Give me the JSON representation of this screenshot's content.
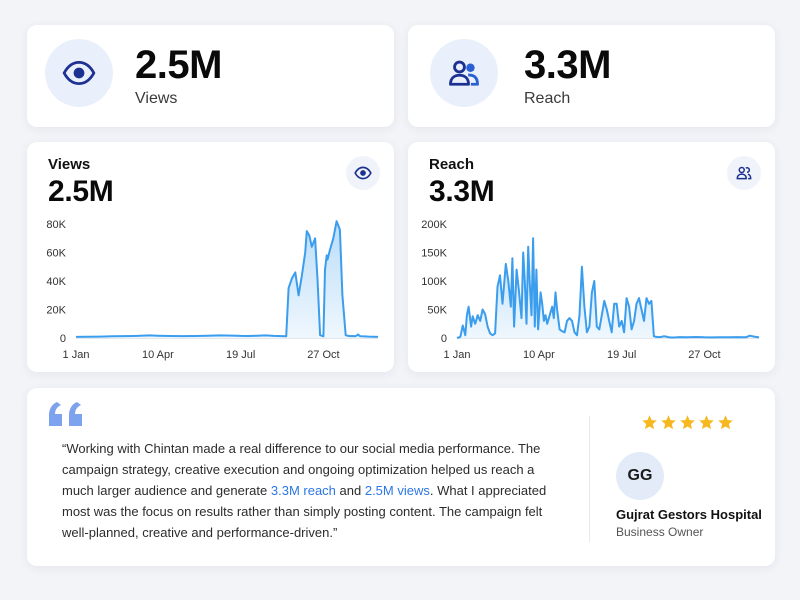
{
  "stats": [
    {
      "value": "2.5M",
      "label": "Views",
      "icon": "eye-icon"
    },
    {
      "value": "3.3M",
      "label": "Reach",
      "icon": "users-icon"
    }
  ],
  "charts": [
    {
      "title": "Views",
      "value": "2.5M",
      "icon": "eye-icon"
    },
    {
      "title": "Reach",
      "value": "3.3M",
      "icon": "users-icon"
    }
  ],
  "chart_data": [
    {
      "type": "area",
      "title": "Views",
      "ylim": [
        0,
        80000
      ],
      "y_ticks": [
        {
          "value": 80000,
          "label": "80K"
        },
        {
          "value": 60000,
          "label": "60K"
        },
        {
          "value": 40000,
          "label": "40K"
        },
        {
          "value": 20000,
          "label": "20K"
        },
        {
          "value": 0,
          "label": "0"
        }
      ],
      "x_ticks": [
        "1 Jan",
        "10 Apr",
        "19 Jul",
        "27 Oct"
      ],
      "x_domain": [
        1,
        366
      ],
      "x_tick_days": [
        1,
        100,
        200,
        300
      ],
      "grid": false,
      "color": "#3b9ded",
      "series": [
        {
          "x": [
            1,
            15,
            30,
            45,
            60,
            75,
            90,
            100,
            115,
            130,
            145,
            160,
            175,
            190,
            200,
            210,
            220,
            230,
            240,
            255,
            258,
            262,
            266,
            270,
            274,
            278,
            280,
            283,
            286,
            290,
            293,
            296,
            300,
            302,
            304,
            305,
            308,
            312,
            316,
            320,
            323,
            327,
            330,
            333,
            336,
            338,
            340,
            342,
            344,
            346,
            350,
            355,
            360,
            366
          ],
          "y": [
            800,
            900,
            1000,
            1200,
            1300,
            1500,
            1800,
            1600,
            1400,
            1300,
            1400,
            1600,
            1800,
            1700,
            1500,
            1400,
            1600,
            1800,
            1500,
            1200,
            35000,
            42000,
            46000,
            30000,
            44000,
            60000,
            75000,
            72000,
            64000,
            70000,
            40000,
            2000,
            1200,
            48000,
            58000,
            55000,
            62000,
            70000,
            82000,
            76000,
            30000,
            2000,
            1500,
            1300,
            1400,
            1200,
            1600,
            2500,
            1300,
            1200,
            1100,
            1000,
            900,
            800
          ]
        }
      ]
    },
    {
      "type": "area",
      "title": "Reach",
      "ylim": [
        0,
        200000
      ],
      "y_ticks": [
        {
          "value": 200000,
          "label": "200K"
        },
        {
          "value": 150000,
          "label": "150K"
        },
        {
          "value": 100000,
          "label": "100K"
        },
        {
          "value": 50000,
          "label": "50K"
        },
        {
          "value": 0,
          "label": "0"
        }
      ],
      "x_ticks": [
        "1 Jan",
        "10 Apr",
        "19 Jul",
        "27 Oct"
      ],
      "x_domain": [
        1,
        366
      ],
      "x_tick_days": [
        1,
        100,
        200,
        300
      ],
      "grid": false,
      "color": "#3b9ded",
      "series": [
        {
          "x": [
            1,
            5,
            8,
            11,
            13,
            15,
            18,
            20,
            23,
            26,
            29,
            32,
            35,
            38,
            41,
            44,
            47,
            50,
            53,
            56,
            60,
            63,
            66,
            68,
            70,
            73,
            76,
            79,
            81,
            83,
            85,
            87,
            89,
            91,
            93,
            95,
            97,
            99,
            102,
            104,
            106,
            108,
            110,
            113,
            116,
            118,
            120,
            122,
            125,
            128,
            131,
            134,
            137,
            140,
            143,
            146,
            149,
            152,
            155,
            158,
            161,
            164,
            167,
            170,
            173,
            176,
            179,
            182,
            185,
            188,
            191,
            194,
            197,
            200,
            203,
            206,
            209,
            212,
            215,
            218,
            221,
            224,
            227,
            230,
            233,
            236,
            239,
            242,
            245,
            248,
            251,
            254,
            257,
            260,
            265,
            270,
            280,
            290,
            300,
            310,
            320,
            330,
            340,
            350,
            355,
            360,
            366
          ],
          "y": [
            0,
            2000,
            22000,
            5000,
            40000,
            55000,
            20000,
            38000,
            25000,
            40000,
            30000,
            50000,
            42000,
            20000,
            8000,
            5000,
            8000,
            90000,
            110000,
            60000,
            130000,
            100000,
            55000,
            140000,
            20000,
            120000,
            80000,
            35000,
            150000,
            100000,
            25000,
            160000,
            95000,
            40000,
            175000,
            20000,
            120000,
            15000,
            80000,
            60000,
            30000,
            40000,
            25000,
            40000,
            55000,
            35000,
            80000,
            50000,
            15000,
            12000,
            10000,
            30000,
            35000,
            30000,
            10000,
            5000,
            40000,
            125000,
            55000,
            10000,
            20000,
            80000,
            100000,
            20000,
            15000,
            40000,
            65000,
            50000,
            30000,
            10000,
            60000,
            60000,
            20000,
            30000,
            10000,
            70000,
            55000,
            15000,
            30000,
            60000,
            70000,
            50000,
            30000,
            70000,
            60000,
            65000,
            3000,
            2000,
            1500,
            2000,
            3000,
            2500,
            1200,
            900,
            1100,
            1500,
            1200,
            1800,
            1300,
            1000,
            1400,
            1200,
            1600,
            1300,
            4000,
            2500,
            1000
          ]
        }
      ]
    }
  ],
  "testimonial": {
    "text_part1": "“Working with Chintan made a real difference to our social media performance. The campaign strategy, creative execution and ongoing optimization helped us reach a much larger audience and generate ",
    "highlight1": "3.3M reach",
    "text_part2": " and ",
    "highlight2": "2.5M views",
    "text_part3": ". What I appreciated most was the focus on results rather than simply posting content. The campaign felt well-planned, creative and performance-driven.”",
    "rating": 5,
    "avatar_initials": "GG",
    "author_name": "Gujrat Gestors Hospital",
    "author_role": "Business Owner",
    "quote_icon": "quote-icon",
    "star_icon": "star-icon",
    "star_color": "#f6b81e",
    "highlight_color": "#2b77e4"
  }
}
